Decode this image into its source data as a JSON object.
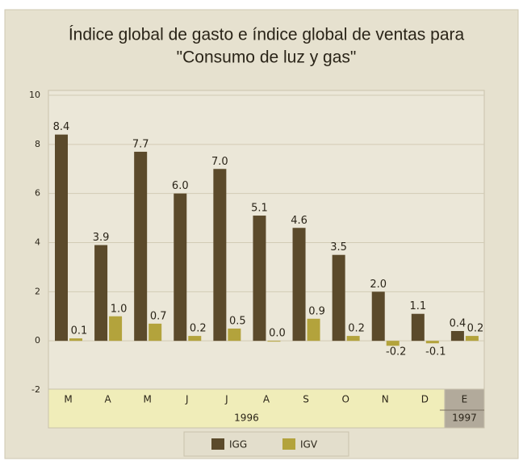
{
  "chart_data": {
    "type": "bar",
    "title": [
      "Índice global de gasto e índice global de ventas para",
      "\"Consumo de luz y gas\""
    ],
    "categories": [
      "M",
      "A",
      "M",
      "J",
      "J",
      "A",
      "S",
      "O",
      "N",
      "D",
      "E"
    ],
    "groups": [
      "1996",
      "1997"
    ],
    "series": [
      {
        "name": "IGG",
        "color": "#5b4a2b",
        "values": [
          8.4,
          3.9,
          7.7,
          6.0,
          7.0,
          5.1,
          4.6,
          3.5,
          2.0,
          1.1,
          0.4
        ],
        "value_labels": [
          "8.4",
          "3.9",
          "7.7",
          "6.0",
          "7.0",
          "5.1",
          "4.6",
          "3.5",
          "2.0",
          "1.1",
          "0.4"
        ]
      },
      {
        "name": "IGV",
        "color": "#b3a33c",
        "values": [
          0.1,
          1.0,
          0.7,
          0.2,
          0.5,
          0.0,
          0.9,
          0.2,
          -0.2,
          -0.1,
          0.2
        ],
        "value_labels": [
          "0.1",
          "1.0",
          "0.7",
          "0.2",
          "0.5",
          "0.0",
          "0.9",
          "0.2",
          "-0.2",
          "-0.1",
          "0.2"
        ]
      }
    ],
    "ylim": [
      -2,
      10
    ],
    "yticks": [
      -2,
      0,
      2,
      4,
      6,
      8,
      10
    ],
    "grid": true,
    "legend": "bottom"
  }
}
